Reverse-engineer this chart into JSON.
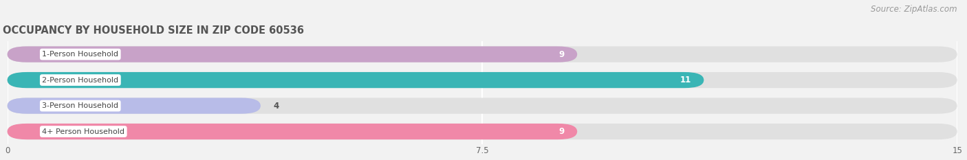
{
  "title": "OCCUPANCY BY HOUSEHOLD SIZE IN ZIP CODE 60536",
  "source": "Source: ZipAtlas.com",
  "categories": [
    "1-Person Household",
    "2-Person Household",
    "3-Person Household",
    "4+ Person Household"
  ],
  "values": [
    9,
    11,
    4,
    9
  ],
  "bar_colors": [
    "#c8a2c8",
    "#3ab5b5",
    "#b8bce8",
    "#f088a8"
  ],
  "xlim": [
    0,
    15
  ],
  "xticks": [
    0,
    7.5,
    15
  ],
  "background_color": "#f2f2f2",
  "bar_bg_color": "#e0e0e0",
  "title_fontsize": 10.5,
  "source_fontsize": 8.5,
  "label_fontsize": 8,
  "value_fontsize": 8.5,
  "bar_height": 0.62,
  "bar_gap": 0.38
}
